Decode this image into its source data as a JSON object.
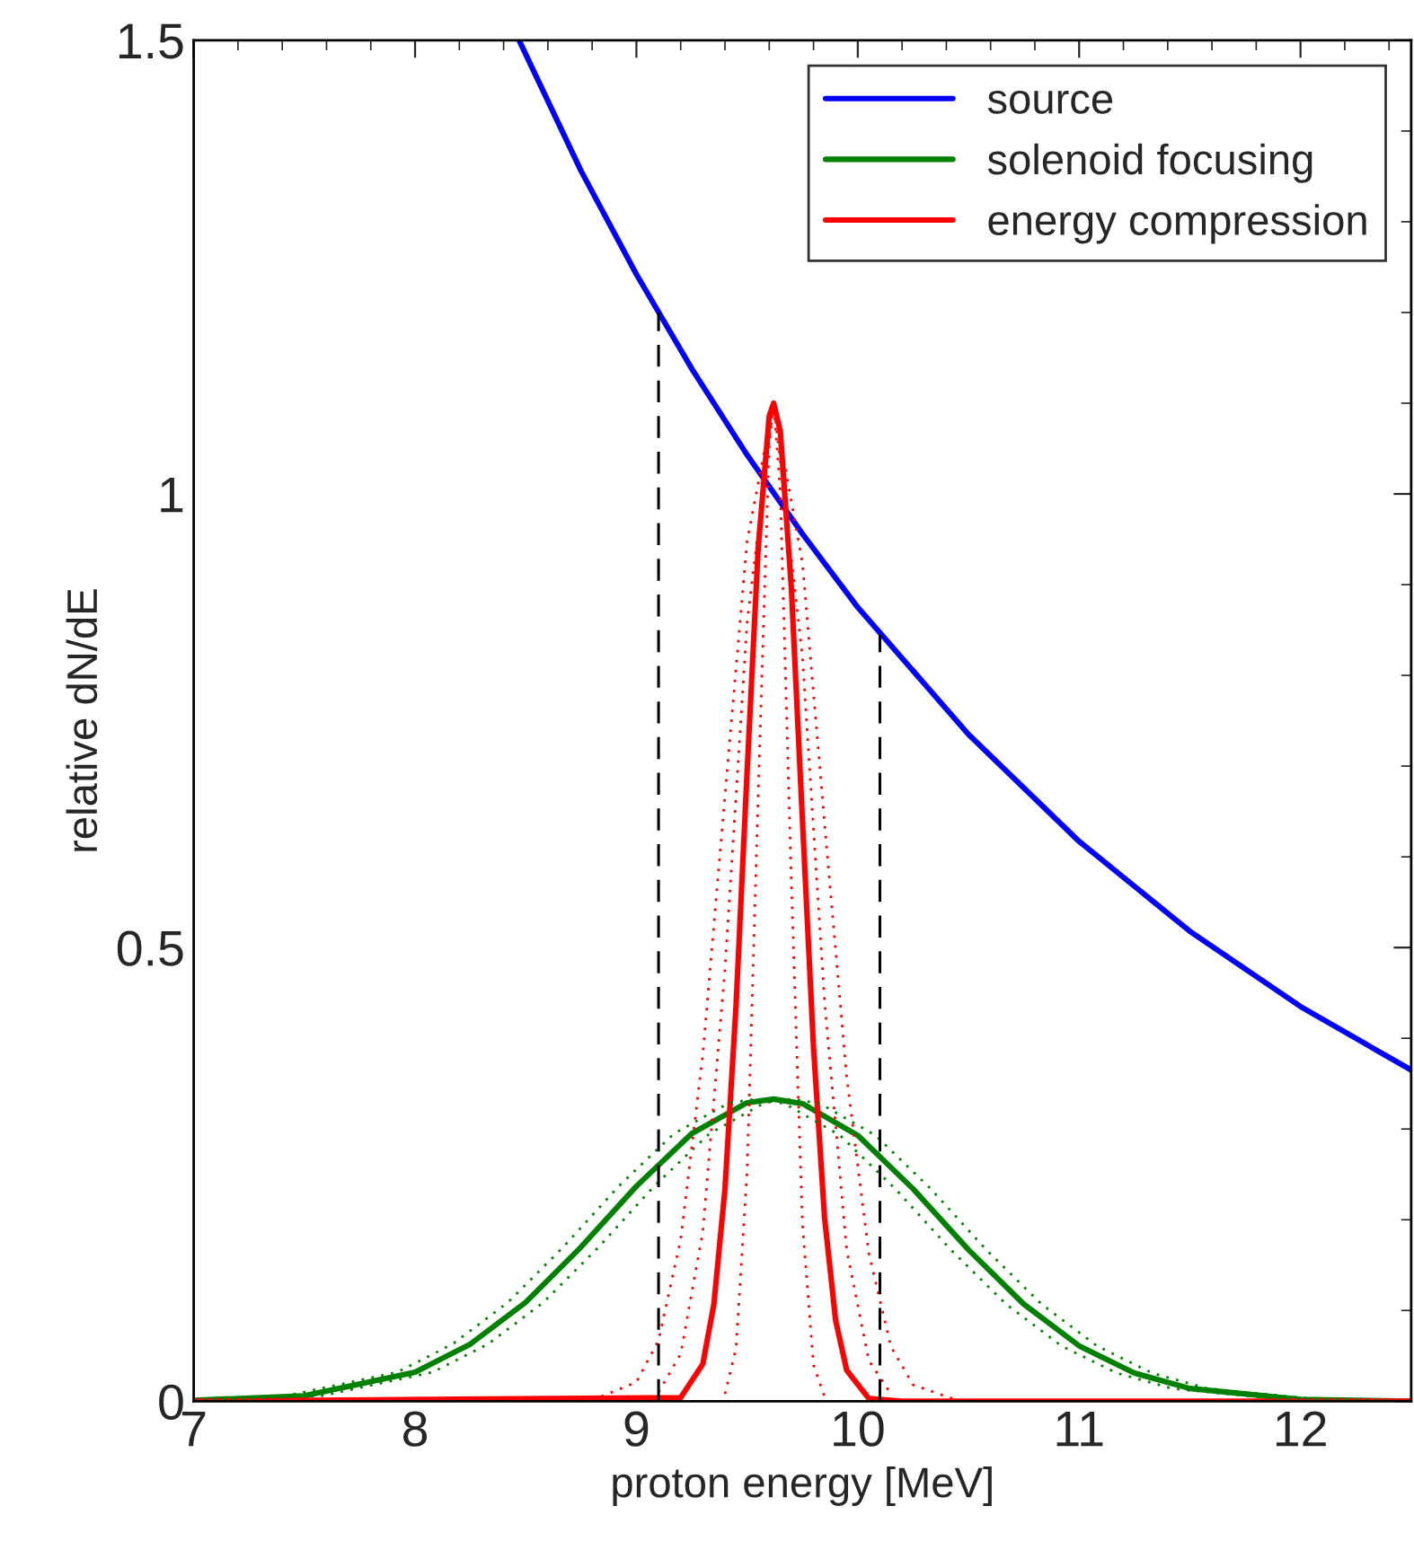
{
  "chart_data": {
    "type": "line",
    "xlabel": "proton energy [MeV]",
    "ylabel": "relative dN/dE",
    "xlim": [
      7,
      12.5
    ],
    "xticks": [
      7,
      8,
      9,
      10,
      11,
      12
    ],
    "ylim": [
      0,
      1.5
    ],
    "yticks": [
      0,
      0.5,
      1,
      1.5
    ],
    "legend": "top right",
    "grid": false,
    "line_style": "solid",
    "series": [
      {
        "name": "source",
        "color": "#0000ff",
        "x": [
          8.47,
          8.75,
          9,
          9.25,
          9.5,
          9.75,
          10,
          10.5,
          11,
          11.5,
          12,
          12.5
        ],
        "values": [
          1.5,
          1.356,
          1.242,
          1.138,
          1.043,
          0.956,
          0.875,
          0.735,
          0.617,
          0.518,
          0.435,
          0.365
        ]
      },
      {
        "name": "solenoid focusing",
        "color": "#008000",
        "x": [
          7,
          7.5,
          8,
          8.25,
          8.5,
          8.75,
          9,
          9.25,
          9.5,
          9.62,
          9.75,
          10,
          10.25,
          10.5,
          10.75,
          11,
          11.25,
          11.5,
          12,
          12.5
        ],
        "values": [
          0.001,
          0.006,
          0.032,
          0.063,
          0.109,
          0.17,
          0.237,
          0.295,
          0.329,
          0.333,
          0.328,
          0.293,
          0.234,
          0.167,
          0.107,
          0.061,
          0.031,
          0.014,
          0.002,
          0
        ]
      },
      {
        "name": "energy compression",
        "color": "#ff0000",
        "x": [
          7,
          9.2,
          9.3,
          9.35,
          9.4,
          9.45,
          9.5,
          9.55,
          9.6,
          9.62,
          9.65,
          9.7,
          9.75,
          9.8,
          9.85,
          9.9,
          9.95,
          10.05,
          10.2,
          12.5
        ],
        "values": [
          0,
          0.004,
          0.041,
          0.107,
          0.234,
          0.436,
          0.694,
          0.94,
          1.086,
          1.1,
          1.069,
          0.896,
          0.64,
          0.39,
          0.202,
          0.089,
          0.034,
          0.003,
          0,
          0
        ]
      },
      {
        "color": "#008000",
        "line_style": "dotted",
        "x": [
          7,
          7.42,
          7.92,
          8.17,
          8.42,
          8.67,
          8.92,
          9.17,
          9.42,
          9.54,
          9.67,
          9.92,
          10.17,
          10.42,
          10.67,
          10.92,
          11.17,
          11.42,
          11.92,
          12.42
        ],
        "values": [
          0.001,
          0.006,
          0.032,
          0.063,
          0.109,
          0.17,
          0.237,
          0.295,
          0.329,
          0.333,
          0.328,
          0.293,
          0.234,
          0.167,
          0.107,
          0.061,
          0.031,
          0.014,
          0.002,
          0
        ]
      },
      {
        "color": "#008000",
        "line_style": "dotted",
        "x": [
          7.08,
          7.58,
          8.08,
          8.33,
          8.58,
          8.83,
          9.08,
          9.33,
          9.58,
          9.7,
          9.83,
          10.08,
          10.33,
          10.58,
          10.83,
          11.08,
          11.33,
          11.58,
          12.08,
          12.5
        ],
        "values": [
          0.001,
          0.006,
          0.032,
          0.063,
          0.109,
          0.17,
          0.237,
          0.295,
          0.329,
          0.333,
          0.328,
          0.293,
          0.234,
          0.167,
          0.107,
          0.061,
          0.031,
          0.014,
          0.002,
          0
        ]
      },
      {
        "color": "#ff0000",
        "line_style": "dotted",
        "x": [
          8.8,
          9,
          9.1,
          9.2,
          9.3,
          9.4,
          9.5,
          9.62,
          9.75,
          9.85,
          9.95,
          10.05,
          10.15,
          10.25,
          10.45
        ],
        "values": [
          0.001,
          0.021,
          0.067,
          0.178,
          0.382,
          0.667,
          0.948,
          1.1,
          0.924,
          0.637,
          0.357,
          0.163,
          0.06,
          0.018,
          0.001
        ]
      },
      {
        "color": "#ff0000",
        "line_style": "dotted",
        "x": [
          9.1,
          9.2,
          9.3,
          9.4,
          9.5,
          9.62,
          9.75,
          9.85,
          9.95,
          10.05,
          10.15
        ],
        "values": [
          0.01,
          0.052,
          0.187,
          0.476,
          0.858,
          1.1,
          0.821,
          0.441,
          0.167,
          0.045,
          0.008
        ]
      },
      {
        "color": "#ff0000",
        "line_style": "dotted",
        "x": [
          9.4,
          9.45,
          9.5,
          9.55,
          9.6,
          9.62,
          9.65,
          9.7,
          9.75,
          9.8,
          9.85
        ],
        "values": [
          0.008,
          0.058,
          0.253,
          0.667,
          1.056,
          1.1,
          1.003,
          0.572,
          0.196,
          0.04,
          0.005
        ]
      },
      {
        "color": "#000000",
        "line_style": "dashed",
        "x": [
          9.1,
          9.1
        ],
        "values": [
          0,
          1.2
        ]
      },
      {
        "color": "#000000",
        "line_style": "dashed",
        "x": [
          10.1,
          10.1
        ],
        "values": [
          0,
          0.845
        ]
      }
    ]
  }
}
